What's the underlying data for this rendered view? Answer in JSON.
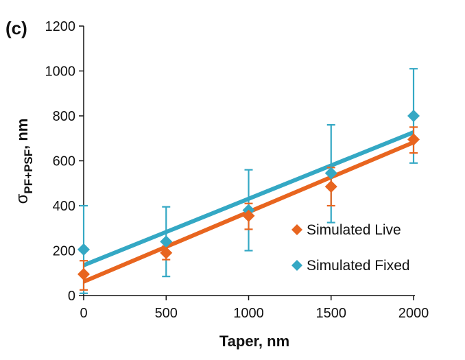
{
  "panel_label": "(c)",
  "colors": {
    "live": "#e8651f",
    "fixed": "#34a8c4",
    "axis": "#111111"
  },
  "chart_data": {
    "type": "scatter",
    "xlabel": "Taper, nm",
    "ylabel_main": "σ",
    "ylabel_sub": "PF+PSF",
    "ylabel_unit": ", nm",
    "xlim": [
      0,
      2000
    ],
    "ylim": [
      0,
      1200
    ],
    "x_ticks": [
      0,
      500,
      1000,
      1500,
      2000
    ],
    "y_ticks": [
      0,
      200,
      400,
      600,
      800,
      1000,
      1200
    ],
    "grid": false,
    "legend_position": "lower-right",
    "series": [
      {
        "name": "Simulated Live",
        "key": "live",
        "marker": "diamond",
        "x": [
          0,
          500,
          1000,
          1500,
          2000
        ],
        "y": [
          95,
          190,
          355,
          485,
          695
        ],
        "err_low": [
          70,
          30,
          60,
          85,
          60
        ],
        "err_high": [
          60,
          30,
          55,
          85,
          55
        ],
        "fit": {
          "slope": 0.31,
          "intercept": 62
        }
      },
      {
        "name": "Simulated Fixed",
        "key": "fixed",
        "marker": "diamond",
        "x": [
          0,
          500,
          1000,
          1500,
          2000
        ],
        "y": [
          205,
          240,
          380,
          545,
          800
        ],
        "err_low": [
          195,
          155,
          180,
          220,
          210
        ],
        "err_high": [
          195,
          155,
          180,
          215,
          210
        ],
        "fit": {
          "slope": 0.296,
          "intercept": 135
        }
      }
    ]
  }
}
